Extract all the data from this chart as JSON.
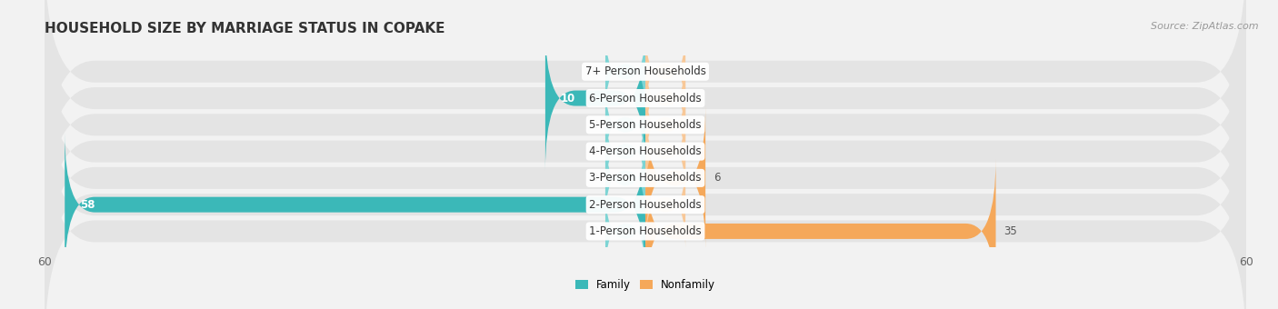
{
  "title": "HOUSEHOLD SIZE BY MARRIAGE STATUS IN COPAKE",
  "source": "Source: ZipAtlas.com",
  "categories": [
    "1-Person Households",
    "2-Person Households",
    "3-Person Households",
    "4-Person Households",
    "5-Person Households",
    "6-Person Households",
    "7+ Person Households"
  ],
  "family": [
    0,
    58,
    0,
    0,
    0,
    10,
    0
  ],
  "nonfamily": [
    35,
    0,
    6,
    0,
    0,
    0,
    0
  ],
  "family_bar_color": "#3bb8b8",
  "nonfamily_bar_color": "#f5a85a",
  "family_stub_color": "#7dd4d4",
  "nonfamily_stub_color": "#f8c898",
  "xlim": [
    -60,
    60
  ],
  "background_color": "#f2f2f2",
  "row_bg_color": "#e4e4e4",
  "title_fontsize": 11,
  "source_fontsize": 8,
  "label_fontsize": 8.5,
  "tick_fontsize": 9,
  "stub_size": 4
}
